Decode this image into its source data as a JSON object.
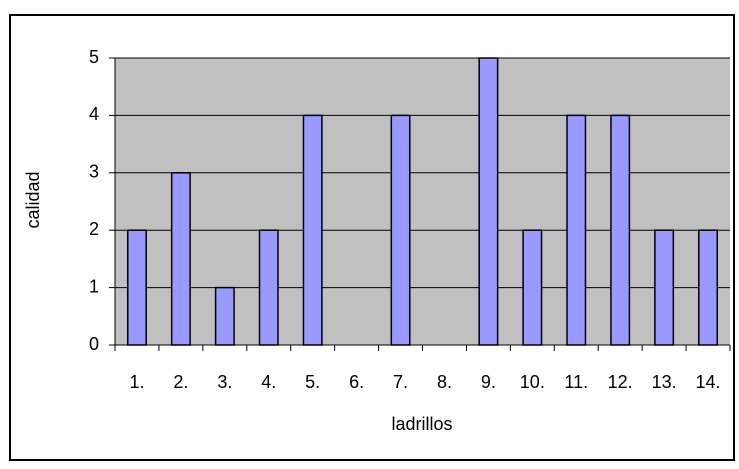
{
  "chart_data": {
    "type": "bar",
    "x_label": "ladrillos",
    "y_label": "calidad",
    "categories": [
      "1.",
      "2.",
      "3.",
      "4.",
      "5.",
      "6.",
      "7.",
      "8.",
      "9.",
      "10.",
      "11.",
      "12.",
      "13.",
      "14."
    ],
    "values": [
      2,
      3,
      1,
      2,
      4,
      0,
      4,
      0,
      5,
      2,
      4,
      4,
      2,
      2
    ],
    "color": "#9999ff",
    "ylim": [
      0,
      5
    ],
    "yticks": [
      0,
      1,
      2,
      3,
      4,
      5
    ],
    "grid": true
  }
}
